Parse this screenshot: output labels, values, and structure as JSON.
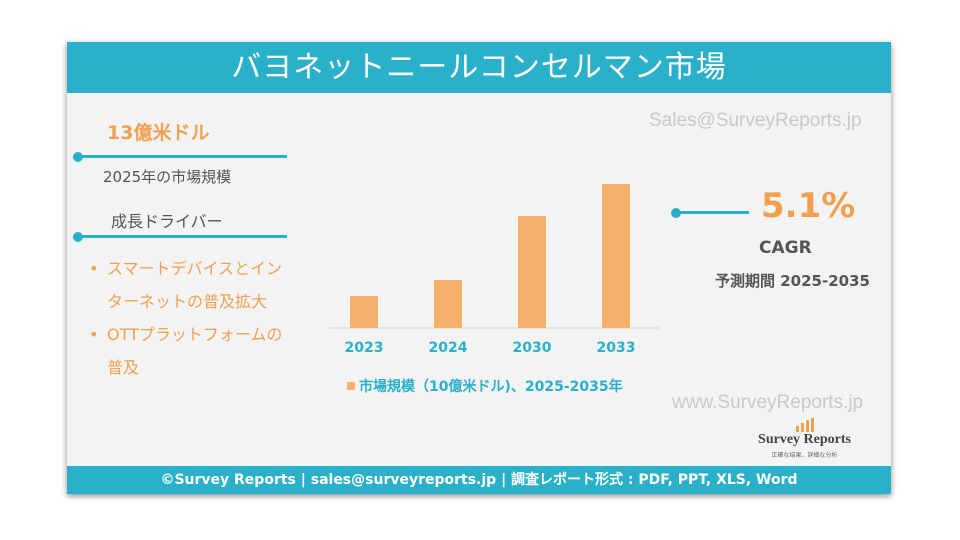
{
  "title": "バヨネットニールコンセルマン市場",
  "watermark_text": "Sales@SurveyReports.jp",
  "watermark_text_2": "www.SurveyReports.jp",
  "market_size": {
    "value": "13億米ドル",
    "year_label": "2025年の市場規模"
  },
  "drivers": {
    "heading": "成長ドライバー",
    "items": [
      "スマートデバイスとインターネットの普及拡大",
      "OTTプラットフォームの普及"
    ]
  },
  "cagr": {
    "value": "5.1%",
    "label": "CAGR",
    "forecast_period": "予測期間 2025-2035"
  },
  "logo": {
    "name": "Survey Reports",
    "tagline": "正確な结果、詳細な分析"
  },
  "footer": "©Survey Reports | sales@surveyreports.jp |  調査レポート形式 : PDF, PPT, XLS, Word",
  "colors": {
    "accent": "#2ab0c8",
    "bar": "#f5b06b",
    "highlight": "#f0a050"
  },
  "chart_data": {
    "type": "bar",
    "categories": [
      "2023",
      "2024",
      "2030",
      "2033"
    ],
    "values": [
      1.2,
      1.8,
      4.2,
      5.4
    ],
    "legend": "市場規模（10億米ドル)、2025-2035年",
    "ylim": [
      0,
      6
    ],
    "grid": false
  }
}
